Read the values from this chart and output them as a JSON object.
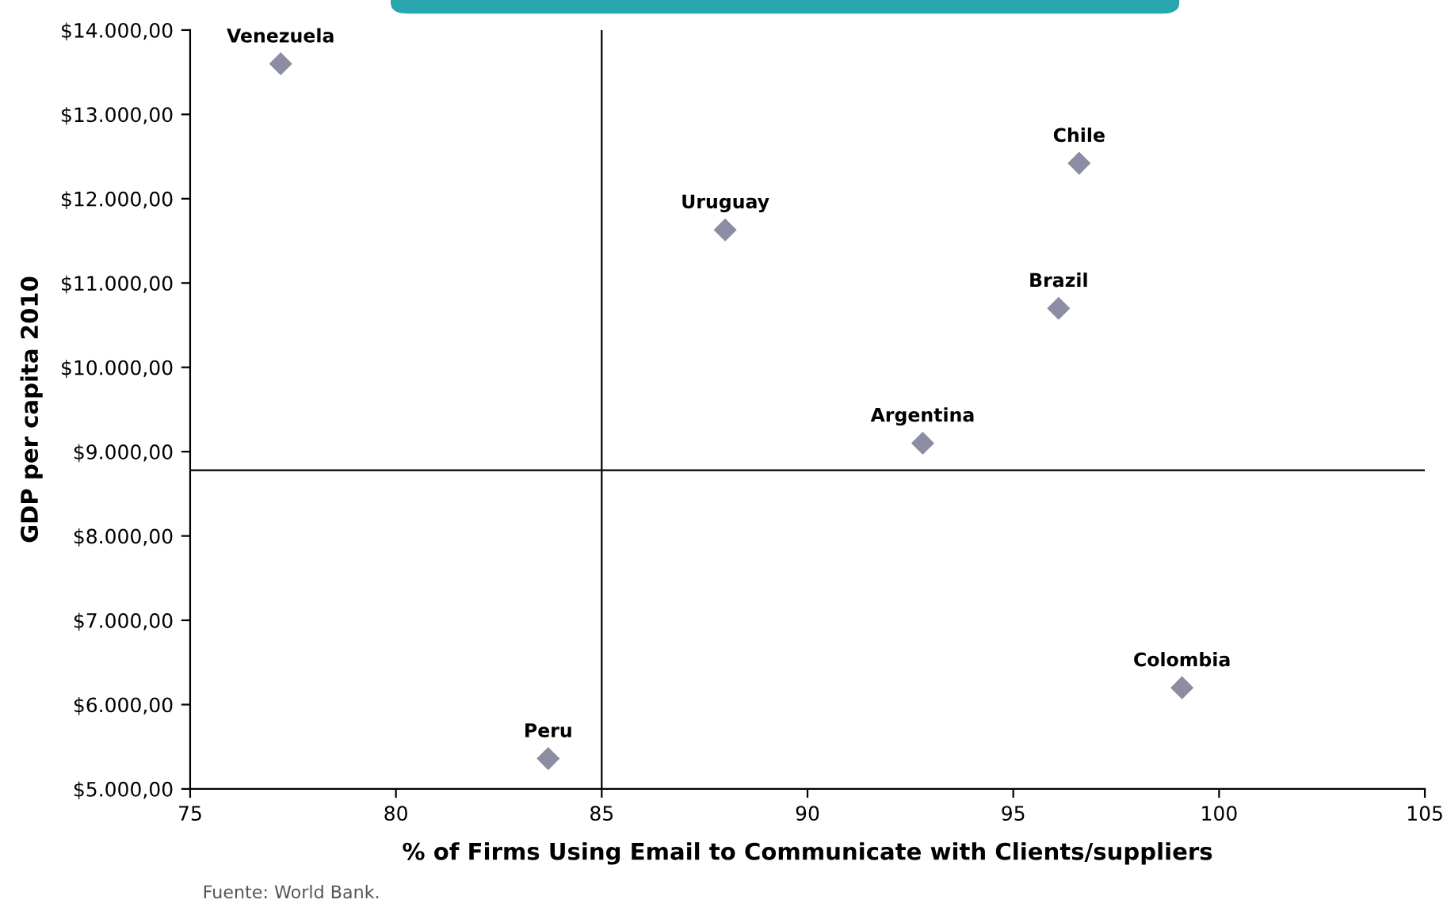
{
  "chart_data": {
    "type": "scatter",
    "xlabel": "% of Firms Using Email to Communicate with Clients/suppliers",
    "ylabel": "GDP per capita 2010",
    "x": [
      77.2,
      96.6,
      88.0,
      96.1,
      92.8,
      83.7,
      99.1
    ],
    "series": [
      {
        "color": "#8c8ca3",
        "values": [
          13600,
          12420,
          11630,
          10700,
          9100,
          5360,
          6200
        ]
      }
    ],
    "marker": "diamond",
    "xlim": [
      75,
      105
    ],
    "xticks": [
      75,
      80,
      85,
      90,
      95,
      100,
      105
    ],
    "ylim": [
      5000,
      14000
    ],
    "yticks": [
      {
        "value": 5000,
        "label": "$5.000,00"
      },
      {
        "value": 6000,
        "label": "$6.000,00"
      },
      {
        "value": 7000,
        "label": "$7.000,00"
      },
      {
        "value": 8000,
        "label": "$8.000,00"
      },
      {
        "value": 9000,
        "label": "$9.000,00"
      },
      {
        "value": 10000,
        "label": "$10.000,00"
      },
      {
        "value": 11000,
        "label": "$11.000,00"
      },
      {
        "value": 12000,
        "label": "$12.000,00"
      },
      {
        "value": 13000,
        "label": "$13.000,00"
      },
      {
        "value": 14000,
        "label": "$14.000,00"
      }
    ],
    "ref_lines": [
      {
        "axis": "x",
        "value": 85,
        "color": "#000000"
      },
      {
        "axis": "y",
        "value": 8780,
        "color": "#000000"
      }
    ],
    "grid": false,
    "annotations": [
      {
        "text": "Venezuela",
        "x": 77.2,
        "y": 13600
      },
      {
        "text": "Chile",
        "x": 96.6,
        "y": 12420
      },
      {
        "text": "Uruguay",
        "x": 88.0,
        "y": 11630
      },
      {
        "text": "Brazil",
        "x": 96.1,
        "y": 10700
      },
      {
        "text": "Argentina",
        "x": 92.8,
        "y": 9100
      },
      {
        "text": "Peru",
        "x": 83.7,
        "y": 5360
      },
      {
        "text": "Colombia",
        "x": 99.1,
        "y": 6200
      },
      "Fuente: World Bank."
    ]
  }
}
